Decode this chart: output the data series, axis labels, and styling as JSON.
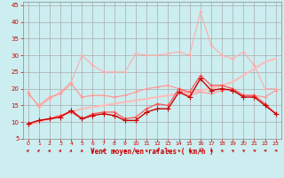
{
  "title": "",
  "xlabel": "Vent moyen/en rafales ( km/h )",
  "background_color": "#cceef0",
  "grid_color": "#aaaaaa",
  "xlim": [
    -0.5,
    23.5
  ],
  "ylim": [
    5,
    46
  ],
  "yticks": [
    5,
    10,
    15,
    20,
    25,
    30,
    35,
    40,
    45
  ],
  "xticks": [
    0,
    1,
    2,
    3,
    4,
    5,
    6,
    7,
    8,
    9,
    10,
    11,
    12,
    13,
    14,
    15,
    16,
    17,
    18,
    19,
    20,
    21,
    22,
    23
  ],
  "x": [
    0,
    1,
    2,
    3,
    4,
    5,
    6,
    7,
    8,
    9,
    10,
    11,
    12,
    13,
    14,
    15,
    16,
    17,
    18,
    19,
    20,
    21,
    22,
    23
  ],
  "lines": [
    {
      "y": [
        19,
        14.5,
        17,
        19,
        22,
        30,
        27,
        25,
        25,
        25,
        30.5,
        30,
        30,
        30.5,
        31,
        30,
        43,
        33,
        30,
        29,
        31,
        27,
        20,
        20
      ],
      "color": "#ffaaaa",
      "lw": 0.8,
      "marker": "+",
      "ms": 3,
      "zorder": 1
    },
    {
      "y": [
        9,
        10,
        11,
        12,
        13,
        14,
        14.5,
        15,
        15.5,
        16,
        16.5,
        17,
        17.5,
        18,
        18.5,
        19,
        19.5,
        20,
        21,
        22,
        24,
        26,
        28,
        29
      ],
      "color": "#ffbbbb",
      "lw": 1.5,
      "marker": null,
      "ms": 0,
      "zorder": 2
    },
    {
      "y": [
        18.5,
        15,
        17.5,
        18.5,
        21.5,
        17.5,
        18,
        18,
        17.5,
        18,
        19,
        20,
        20.5,
        21,
        20,
        18,
        19,
        18.5,
        19.5,
        20,
        18,
        18,
        17.5,
        19.5
      ],
      "color": "#ff9999",
      "lw": 0.9,
      "marker": "+",
      "ms": 3,
      "zorder": 3
    },
    {
      "y": [
        9.5,
        10.5,
        11,
        12,
        13,
        11,
        12.5,
        13,
        13,
        11,
        11.5,
        14,
        15.5,
        15,
        20,
        19,
        24,
        21,
        21,
        20,
        18,
        18,
        15.5,
        12.5
      ],
      "color": "#ff5555",
      "lw": 0.9,
      "marker": "+",
      "ms": 3,
      "zorder": 4
    },
    {
      "y": [
        9.5,
        10.5,
        11,
        11.5,
        13.5,
        11,
        12,
        12.5,
        12,
        10.5,
        10.5,
        13,
        14,
        14,
        19,
        17.5,
        23,
        19.5,
        20,
        19.5,
        17.5,
        17.5,
        15,
        12.5
      ],
      "color": "#cc0000",
      "lw": 1.0,
      "marker": "+",
      "ms": 4,
      "zorder": 5
    }
  ],
  "arrow_angles": [
    45,
    45,
    60,
    60,
    70,
    75,
    80,
    85,
    90,
    90,
    100,
    105,
    110,
    115,
    120,
    125,
    130,
    135,
    140,
    145,
    150,
    160,
    170,
    175
  ]
}
